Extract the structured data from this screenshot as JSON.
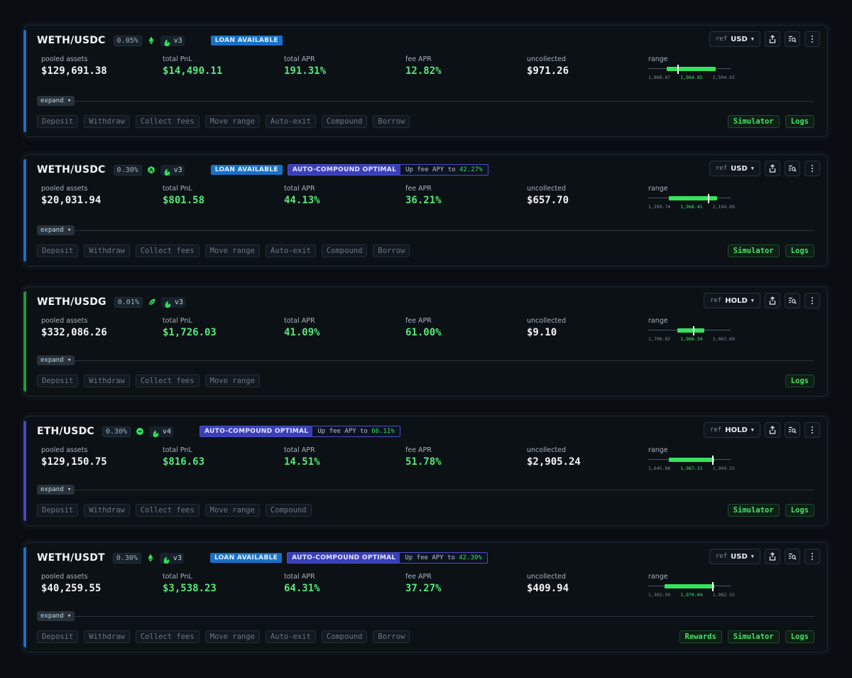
{
  "positions": [
    {
      "pair": "WETH/USDC",
      "fee": "0.05%",
      "chain_icon": "ethereum-icon",
      "chain_color": "#2fe05a",
      "protocol": "v3",
      "loan_tag": "LOAN AVAILABLE",
      "auto_compound": null,
      "ref_label": "ref",
      "ref_value": "USD",
      "metrics": {
        "pooled_label": "pooled assets",
        "pooled": "$129,691.38",
        "pnl_label": "total PnL",
        "pnl": "$14,490.11",
        "apr_label": "total APR",
        "apr": "191.31%",
        "fee_apr_label": "fee APR",
        "fee_apr": "12.82%",
        "uncollected_label": "uncollected",
        "uncollected": "$971.26"
      },
      "range": {
        "label": "range",
        "low": "1,808.87",
        "current": "1,964.85",
        "high": "2,504.92",
        "fill_start": 0.22,
        "fill_end": 0.82,
        "marker": 0.35
      },
      "expand": "expand",
      "actions": [
        "Deposit",
        "Withdraw",
        "Collect fees",
        "Move range",
        "Auto-exit",
        "Compound",
        "Borrow"
      ],
      "right_actions": [
        "Simulator",
        "Logs"
      ],
      "accent": "#1f6fc6"
    },
    {
      "pair": "WETH/USDC",
      "fee": "0.30%",
      "chain_icon": "arbitrum-icon",
      "chain_color": "#2fe05a",
      "protocol": "v3",
      "loan_tag": "LOAN AVAILABLE",
      "auto_compound": {
        "label": "AUTO-COMPOUND OPTIMAL",
        "text": "Up fee APY to",
        "pct": "42.27%"
      },
      "ref_label": "ref",
      "ref_value": "USD",
      "metrics": {
        "pooled_label": "pooled assets",
        "pooled": "$20,031.94",
        "pnl_label": "total PnL",
        "pnl": "$801.58",
        "apr_label": "total APR",
        "apr": "44.13%",
        "fee_apr_label": "fee APR",
        "fee_apr": "36.21%",
        "uncollected_label": "uncollected",
        "uncollected": "$657.70"
      },
      "range": {
        "label": "range",
        "low": "1,399.74",
        "current": "1,968.41",
        "high": "2,104.89",
        "fill_start": 0.25,
        "fill_end": 0.84,
        "marker": 0.72
      },
      "expand": "expand",
      "actions": [
        "Deposit",
        "Withdraw",
        "Collect fees",
        "Move range",
        "Auto-exit",
        "Compound",
        "Borrow"
      ],
      "right_actions": [
        "Simulator",
        "Logs"
      ],
      "accent": "#1f6fc6"
    },
    {
      "pair": "WETH/USDG",
      "fee": "0.01%",
      "chain_icon": "leaf-icon",
      "chain_color": "#2fe05a",
      "protocol": "v3",
      "loan_tag": null,
      "auto_compound": null,
      "ref_label": "ref",
      "ref_value": "HOLD",
      "metrics": {
        "pooled_label": "pooled assets",
        "pooled": "$332,086.26",
        "pnl_label": "total PnL",
        "pnl": "$1,726.03",
        "apr_label": "total APR",
        "apr": "41.09%",
        "fee_apr_label": "fee APR",
        "fee_apr": "61.00%",
        "uncollected_label": "uncollected",
        "uncollected": "$9.10"
      },
      "range": {
        "label": "range",
        "low": "1,790.82",
        "current": "1,966.34",
        "high": "2,062.60",
        "fill_start": 0.35,
        "fill_end": 0.68,
        "marker": 0.54
      },
      "expand": "expand",
      "actions": [
        "Deposit",
        "Withdraw",
        "Collect fees",
        "Move range"
      ],
      "right_actions": [
        "Logs"
      ],
      "accent": "#1f9a3c"
    },
    {
      "pair": "ETH/USDC",
      "fee": "0.30%",
      "chain_icon": "circle-icon",
      "chain_color": "#2fe05a",
      "protocol": "v4",
      "loan_tag": null,
      "auto_compound": {
        "label": "AUTO-COMPOUND OPTIMAL",
        "text": "Up fee APY to",
        "pct": "66.11%"
      },
      "ref_label": "ref",
      "ref_value": "HOLD",
      "metrics": {
        "pooled_label": "pooled assets",
        "pooled": "$129,150.75",
        "pnl_label": "total PnL",
        "pnl": "$816.63",
        "apr_label": "total APR",
        "apr": "14.51%",
        "fee_apr_label": "fee APR",
        "fee_apr": "51.78%",
        "uncollected_label": "uncollected",
        "uncollected": "$2,905.24"
      },
      "range": {
        "label": "range",
        "low": "1,645.88",
        "current": "1,967.21",
        "high": "1,994.25",
        "fill_start": 0.25,
        "fill_end": 0.8,
        "marker": 0.78
      },
      "expand": "expand",
      "actions": [
        "Deposit",
        "Withdraw",
        "Collect fees",
        "Move range",
        "Compound"
      ],
      "right_actions": [
        "Simulator",
        "Logs"
      ],
      "accent": "#4a46c8"
    },
    {
      "pair": "WETH/USDT",
      "fee": "0.30%",
      "chain_icon": "ethereum-icon",
      "chain_color": "#2fe05a",
      "protocol": "v3",
      "loan_tag": "LOAN AVAILABLE",
      "auto_compound": {
        "label": "AUTO-COMPOUND OPTIMAL",
        "text": "Up fee APY to",
        "pct": "42.30%"
      },
      "ref_label": "ref",
      "ref_value": "USD",
      "metrics": {
        "pooled_label": "pooled assets",
        "pooled": "$40,259.55",
        "pnl_label": "total PnL",
        "pnl": "$3,538.23",
        "apr_label": "total APR",
        "apr": "64.31%",
        "fee_apr_label": "fee APR",
        "fee_apr": "37.27%",
        "uncollected_label": "uncollected",
        "uncollected": "$409.94"
      },
      "range": {
        "label": "range",
        "low": "1,302.50",
        "current": "1,970.04",
        "high": "1,982.32",
        "fill_start": 0.2,
        "fill_end": 0.8,
        "marker": 0.78
      },
      "expand": "expand",
      "actions": [
        "Deposit",
        "Withdraw",
        "Collect fees",
        "Move range",
        "Auto-exit",
        "Compound",
        "Borrow"
      ],
      "right_actions": [
        "Rewards",
        "Simulator",
        "Logs"
      ],
      "accent": "#1f6fc6"
    }
  ]
}
